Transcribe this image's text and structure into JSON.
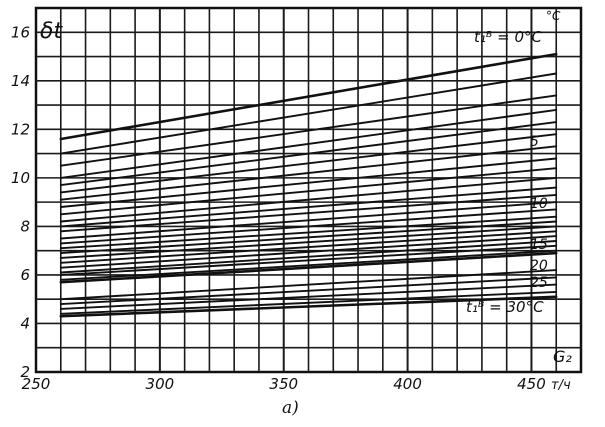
{
  "caption": "a)",
  "chart_data": {
    "type": "line",
    "title": "",
    "xlabel": "G₂",
    "xunit": "т/ч",
    "ylabel": "δt",
    "yunit": "°C",
    "xlim": [
      250,
      470
    ],
    "ylim": [
      2,
      17
    ],
    "grid": true,
    "x_ticks": [
      "250",
      "300",
      "350",
      "400",
      "450"
    ],
    "y_ticks": [
      "2",
      "4",
      "6",
      "8",
      "10",
      "12",
      "14",
      "16"
    ],
    "annotations": [
      {
        "text": "t₁ᴮ = 0°C",
        "anchor_y": 15.9
      },
      {
        "text": "5",
        "anchor_y": 11.4
      },
      {
        "text": "10",
        "anchor_y": 8.9
      },
      {
        "text": "15",
        "anchor_y": 6.8
      },
      {
        "text": "20",
        "anchor_y": 5.6
      },
      {
        "text": "25",
        "anchor_y": 4.9
      },
      {
        "text": "t₁ᴮ = 30°C",
        "anchor_y": 3.9
      }
    ],
    "series": [
      {
        "x": [
          260,
          460
        ],
        "y": [
          11.6,
          15.1
        ]
      },
      {
        "x": [
          260,
          460
        ],
        "y": [
          11.0,
          14.3
        ]
      },
      {
        "x": [
          260,
          460
        ],
        "y": [
          10.5,
          13.4
        ]
      },
      {
        "x": [
          260,
          460
        ],
        "y": [
          10.0,
          12.8
        ]
      },
      {
        "x": [
          260,
          460
        ],
        "y": [
          9.7,
          12.3
        ]
      },
      {
        "x": [
          260,
          460
        ],
        "y": [
          9.4,
          11.8
        ]
      },
      {
        "x": [
          260,
          460
        ],
        "y": [
          9.1,
          11.3
        ]
      },
      {
        "x": [
          260,
          460
        ],
        "y": [
          8.8,
          10.8
        ]
      },
      {
        "x": [
          260,
          460
        ],
        "y": [
          8.5,
          10.4
        ]
      },
      {
        "x": [
          260,
          460
        ],
        "y": [
          8.2,
          10.0
        ]
      },
      {
        "x": [
          260,
          460
        ],
        "y": [
          8.0,
          9.6
        ]
      },
      {
        "x": [
          260,
          460
        ],
        "y": [
          7.8,
          9.3
        ]
      },
      {
        "x": [
          260,
          460
        ],
        "y": [
          7.5,
          9.0
        ]
      },
      {
        "x": [
          260,
          460
        ],
        "y": [
          7.3,
          8.7
        ]
      },
      {
        "x": [
          260,
          460
        ],
        "y": [
          7.1,
          8.4
        ]
      },
      {
        "x": [
          260,
          460
        ],
        "y": [
          6.9,
          8.2
        ]
      },
      {
        "x": [
          260,
          460
        ],
        "y": [
          6.7,
          8.0
        ]
      },
      {
        "x": [
          260,
          460
        ],
        "y": [
          6.5,
          7.8
        ]
      },
      {
        "x": [
          260,
          460
        ],
        "y": [
          6.3,
          7.6
        ]
      },
      {
        "x": [
          260,
          460
        ],
        "y": [
          6.1,
          7.4
        ]
      },
      {
        "x": [
          260,
          460
        ],
        "y": [
          6.0,
          7.2
        ]
      },
      {
        "x": [
          260,
          460
        ],
        "y": [
          5.8,
          7.0
        ]
      },
      {
        "x": [
          260,
          460
        ],
        "y": [
          5.7,
          6.9
        ]
      },
      {
        "x": [
          260,
          460
        ],
        "y": [
          5.0,
          6.2
        ]
      },
      {
        "x": [
          260,
          460
        ],
        "y": [
          4.8,
          5.9
        ]
      },
      {
        "x": [
          260,
          460
        ],
        "y": [
          4.6,
          5.6
        ]
      },
      {
        "x": [
          260,
          460
        ],
        "y": [
          4.4,
          5.3
        ]
      },
      {
        "x": [
          260,
          460
        ],
        "y": [
          4.3,
          5.1
        ]
      }
    ]
  }
}
